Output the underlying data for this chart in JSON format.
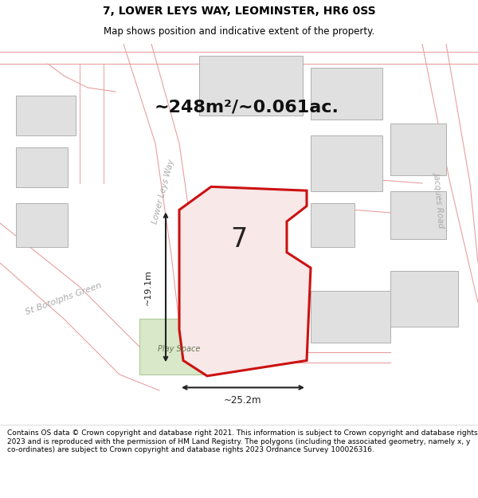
{
  "title": "7, LOWER LEYS WAY, LEOMINSTER, HR6 0SS",
  "subtitle": "Map shows position and indicative extent of the property.",
  "footer": "Contains OS data © Crown copyright and database right 2021. This information is subject to Crown copyright and database rights 2023 and is reproduced with the permission of HM Land Registry. The polygons (including the associated geometry, namely x, y co-ordinates) are subject to Crown copyright and database rights 2023 Ordnance Survey 100026316.",
  "area_text": "~248m²/~0.061ac.",
  "property_number": "7",
  "dim1_text": "~19.1m",
  "dim2_text": "~25.2m",
  "bg_color": "#ffffff",
  "map_bg": "#ffffff",
  "road_line_color": "#e8a0a0",
  "plot_fill": "#f8e8e8",
  "plot_edge": "#cc1111",
  "building_fill": "#e0e0e0",
  "building_edge": "#b0b0b0",
  "green_fill": "#d8e8c8",
  "green_edge": "#b0c898",
  "text_color": "#333333",
  "dim_line_color": "#222222",
  "road_label_color": "#aaaaaa",
  "title_fontsize": 10,
  "subtitle_fontsize": 8.5,
  "footer_fontsize": 6.5
}
